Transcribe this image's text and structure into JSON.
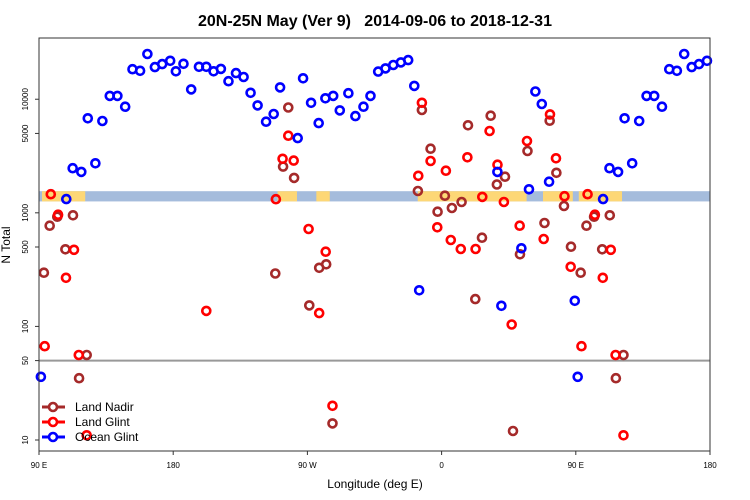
{
  "chart_data": {
    "type": "scatter",
    "title": "20N-25N May (Ver 9)   2014-09-06 to 2018-12-31",
    "xlabel": "Longitude (deg E)",
    "ylabel": "N Total",
    "x_axis": {
      "range_deg_e": [
        90,
        540
      ],
      "note_wrap": "",
      "ticks": [
        {
          "value": 90,
          "label": "90 E"
        },
        {
          "value": 180,
          "label": "180"
        },
        {
          "value": 270,
          "label": "90 W"
        },
        {
          "value": 360,
          "label": "0"
        },
        {
          "value": 450,
          "label": "90 E"
        },
        {
          "value": 540,
          "label": "180"
        }
      ]
    },
    "y_axis": {
      "scale": "log",
      "ylim": [
        8,
        34600
      ],
      "ticks": [
        {
          "value": 10,
          "label": "10"
        },
        {
          "value": 50,
          "label": "50"
        },
        {
          "value": 100,
          "label": "100"
        },
        {
          "value": 500,
          "label": "500"
        },
        {
          "value": 1000,
          "label": "1000"
        },
        {
          "value": 5000,
          "label": "5000"
        },
        {
          "value": 10000,
          "label": "10000"
        }
      ]
    },
    "reference_line": {
      "y": 50,
      "color": "#999999"
    },
    "grid": false,
    "legend": {
      "placement": "bottom-left"
    },
    "land_strip": {
      "value_range": [
        1260,
        1550
      ],
      "ocean_color": "#a5bcdc",
      "land_color": "#fdd776",
      "land_lon_ranges": [
        [
          -110,
          -97
        ],
        [
          -84,
          -75
        ],
        [
          -16,
          57
        ],
        [
          68,
          88
        ],
        [
          92,
          121
        ]
      ]
    },
    "series": [
      {
        "name": "Land Nadir",
        "color": "#a52a2a",
        "points": [
          [
            -102.8,
            8450
          ],
          [
            -106.3,
            2550
          ],
          [
            -98.9,
            2030
          ],
          [
            -111.5,
            292
          ],
          [
            -82.1,
            328
          ],
          [
            -77.4,
            352
          ],
          [
            -88.7,
            153
          ],
          [
            -73.2,
            14
          ],
          [
            -13.2,
            8040
          ],
          [
            -15.9,
            1556
          ],
          [
            -7.4,
            3670
          ],
          [
            17.7,
            5890
          ],
          [
            32.9,
            7160
          ],
          [
            2.2,
            1415
          ],
          [
            -2.7,
            1023
          ],
          [
            6.9,
            1103
          ],
          [
            13.4,
            1245
          ],
          [
            27.1,
            604
          ],
          [
            22.6,
            174
          ],
          [
            37.1,
            1775
          ],
          [
            42.5,
            2080
          ],
          [
            52.6,
            431
          ],
          [
            69.0,
            813
          ],
          [
            57.6,
            3500
          ],
          [
            72.5,
            6470
          ],
          [
            77.0,
            2250
          ],
          [
            82.1,
            1148
          ],
          [
            97.2,
            770
          ],
          [
            102.3,
            924
          ],
          [
            112.8,
            951
          ],
          [
            86.8,
            503
          ],
          [
            93.3,
            297
          ],
          [
            107.7,
            477
          ],
          [
            122.0,
            56
          ],
          [
            116.9,
            35
          ],
          [
            47.9,
            12
          ]
        ]
      },
      {
        "name": "Land Glint",
        "color": "#ff0000",
        "points": [
          [
            -157.8,
            137
          ],
          [
            -111.1,
            1318
          ],
          [
            -102.8,
            4770
          ],
          [
            -106.6,
            2990
          ],
          [
            -99.2,
            2880
          ],
          [
            -89.2,
            720
          ],
          [
            -77.7,
            455
          ],
          [
            -82.1,
            131
          ],
          [
            -73.2,
            20
          ],
          [
            -13.2,
            9310
          ],
          [
            -15.6,
            2120
          ],
          [
            -7.4,
            2860
          ],
          [
            2.9,
            2350
          ],
          [
            17.3,
            3080
          ],
          [
            32.2,
            5250
          ],
          [
            27.3,
            1380
          ],
          [
            -2.9,
            745
          ],
          [
            6.2,
            576
          ],
          [
            12.9,
            480
          ],
          [
            22.8,
            480
          ],
          [
            37.5,
            2650
          ],
          [
            41.8,
            1245
          ],
          [
            52.4,
            770
          ],
          [
            68.5,
            588
          ],
          [
            47.0,
            104
          ],
          [
            57.3,
            4290
          ],
          [
            72.7,
            7360
          ],
          [
            76.7,
            3020
          ],
          [
            82.4,
            1400
          ],
          [
            97.9,
            1460
          ],
          [
            102.8,
            962
          ],
          [
            113.5,
            473
          ],
          [
            86.6,
            335
          ],
          [
            108.1,
            268
          ],
          [
            93.8,
            67
          ],
          [
            116.7,
            56
          ],
          [
            122.0,
            11
          ]
        ]
      },
      {
        "name": "Ocean Glint",
        "color": "#0000ff",
        "points": [
          [
            178,
            21800
          ],
          [
            -178.2,
            17600
          ],
          [
            -173.1,
            20500
          ],
          [
            -167.9,
            12200
          ],
          [
            -162.7,
            19300
          ],
          [
            -157.8,
            19300
          ],
          [
            -152.9,
            17600
          ],
          [
            -148.0,
            18500
          ],
          [
            -142.9,
            14400
          ],
          [
            -137.9,
            17000
          ],
          [
            -132.8,
            15700
          ],
          [
            -128.1,
            11400
          ],
          [
            -123.4,
            8830
          ],
          [
            -117.7,
            6340
          ],
          [
            -112.6,
            7410
          ],
          [
            -108.3,
            12700
          ],
          [
            -96.5,
            4550
          ],
          [
            -92.9,
            15300
          ],
          [
            -87.5,
            9310
          ],
          [
            -82.4,
            6170
          ],
          [
            -77.9,
            10200
          ],
          [
            -72.7,
            10700
          ],
          [
            -68.3,
            7980
          ],
          [
            -62.5,
            11300
          ],
          [
            -57.8,
            7110
          ],
          [
            -52.4,
            8590
          ],
          [
            -47.7,
            10700
          ],
          [
            -42.5,
            17500
          ],
          [
            -37.6,
            18700
          ],
          [
            -32.4,
            20000
          ],
          [
            -27.3,
            21100
          ],
          [
            -22.4,
            22100
          ],
          [
            -18.3,
            13100
          ],
          [
            -15.0,
            208
          ],
          [
            37.4,
            2290
          ],
          [
            40.1,
            152
          ],
          [
            53.5,
            487
          ],
          [
            58.6,
            1610
          ],
          [
            62.9,
            11700
          ],
          [
            67.2,
            9070
          ],
          [
            72.1,
            1880
          ],
          [
            89.3,
            168
          ],
          [
            91.3,
            36
          ],
          [
            108.3,
            1320
          ],
          [
            112.6,
            2470
          ],
          [
            118.4,
            2290
          ],
          [
            122.7,
            6790
          ],
          [
            127.8,
            2730
          ],
          [
            132.5,
            6430
          ],
          [
            137.5,
            10700
          ],
          [
            142.6,
            10700
          ],
          [
            147.8,
            8590
          ],
          [
            152.7,
            18400
          ],
          [
            157.8,
            17800
          ],
          [
            162.7,
            25000
          ],
          [
            167.7,
            19200
          ],
          [
            172.6,
            20400
          ]
        ]
      }
    ]
  }
}
